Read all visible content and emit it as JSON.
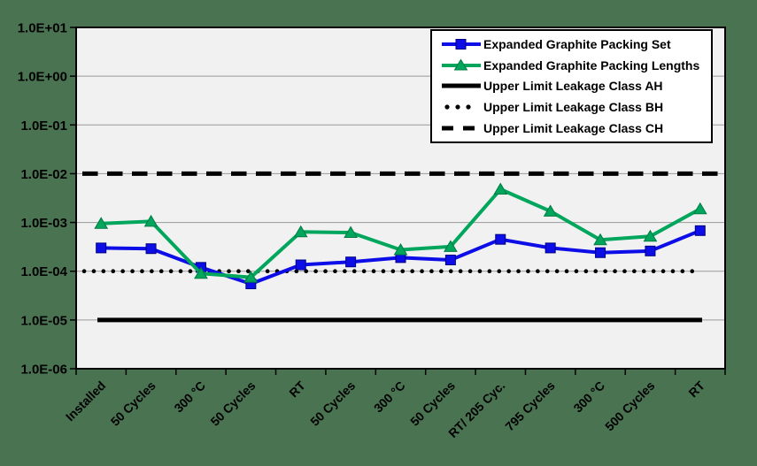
{
  "page": {
    "background_color": "#4A7352",
    "plot_background_color": "#F1F1F1",
    "gridline_color": "#999999",
    "axis_color": "#000000"
  },
  "chart_data": {
    "type": "line",
    "title": "",
    "xlabel": "",
    "ylabel": "",
    "y_scale": "log",
    "ylim": [
      1e-06,
      10
    ],
    "y_tick_labels": [
      "1.0E+01",
      "1.0E+00",
      "1.0E-01",
      "1.0E-02",
      "1.0E-03",
      "1.0E-04",
      "1.0E-05",
      "1.0E-06"
    ],
    "grid": "horizontal",
    "legend_position": "top-right",
    "categories": [
      "Installed",
      "50 Cycles",
      "300 °C",
      "50 Cycles",
      "RT",
      "50 Cycles",
      "300 °C",
      "50 Cycles",
      "RT/ 205 Cyc.",
      "795 Cycles",
      "300 °C",
      "500 Cycles",
      "RT"
    ],
    "series": [
      {
        "name": "Expanded Graphite Packing Set",
        "kind": "data",
        "marker": "square",
        "color": "#0D0DE8",
        "marker_edge_color": "#000080",
        "values": [
          0.0003,
          0.00029,
          0.00012,
          5.5e-05,
          0.000135,
          0.000155,
          0.00019,
          0.00017,
          0.00045,
          0.0003,
          0.00024,
          0.00026,
          0.00068
        ]
      },
      {
        "name": "Expanded Graphite Packing Lengths",
        "kind": "data",
        "marker": "triangle",
        "color": "#00A65C",
        "marker_edge_color": "#007A42",
        "values": [
          0.00095,
          0.00105,
          9e-05,
          7.5e-05,
          0.00064,
          0.00062,
          0.000275,
          0.00032,
          0.0048,
          0.0017,
          0.00044,
          0.00052,
          0.0019
        ]
      },
      {
        "name": "Upper Limit Leakage Class AH",
        "kind": "limit",
        "style": "solid",
        "color": "#000000",
        "value": 1e-05
      },
      {
        "name": "Upper Limit Leakage Class BH",
        "kind": "limit",
        "style": "dotted",
        "color": "#000000",
        "value": 0.0001
      },
      {
        "name": "Upper Limit Leakage Class CH",
        "kind": "limit",
        "style": "dashed",
        "color": "#000000",
        "value": 0.01
      }
    ]
  }
}
